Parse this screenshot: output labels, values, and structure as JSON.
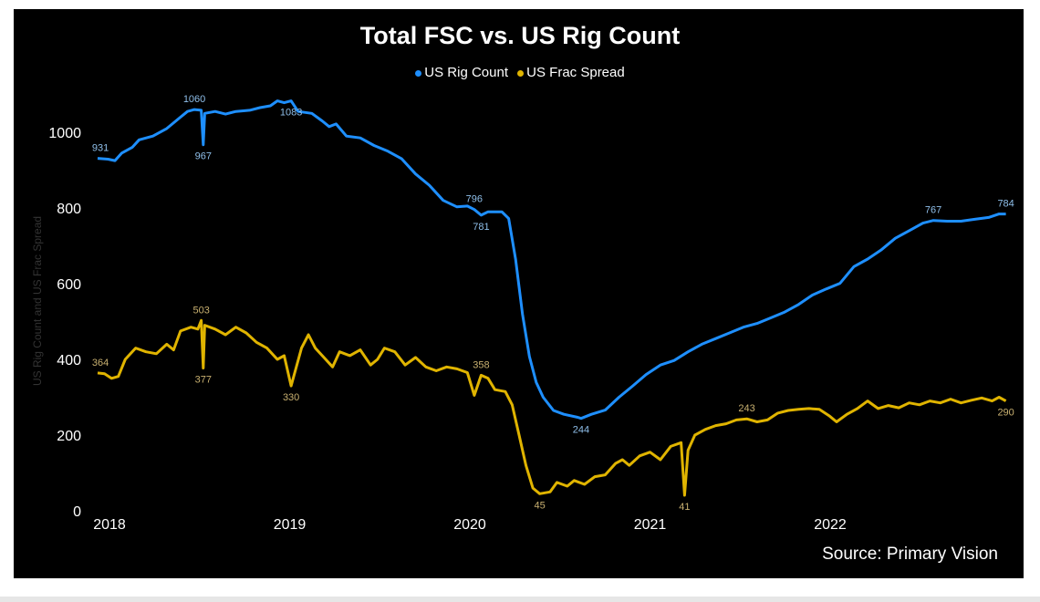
{
  "chart_data": {
    "type": "line",
    "title": "Total FSC vs. US Rig Count",
    "ylabel": "US Rig Count and US Frac Spread",
    "xlabel": "",
    "ylim": [
      0,
      1100
    ],
    "yticks": [
      "0",
      "200",
      "400",
      "600",
      "800",
      "1000"
    ],
    "xticks": [
      "2018",
      "2019",
      "2020",
      "2021",
      "2022"
    ],
    "grid": false,
    "legend_position": "top-center",
    "source": "Source: Primary Vision",
    "series": [
      {
        "name": "US Rig Count",
        "color": "#1e8fff",
        "label_color": "#8fbfea",
        "points": [
          [
            "2017-12-08",
            931
          ],
          [
            "2017-12-29",
            929
          ],
          [
            "2018-01-12",
            925
          ],
          [
            "2018-01-26",
            945
          ],
          [
            "2018-02-16",
            960
          ],
          [
            "2018-03-02",
            980
          ],
          [
            "2018-03-30",
            990
          ],
          [
            "2018-04-27",
            1010
          ],
          [
            "2018-05-25",
            1040
          ],
          [
            "2018-06-08",
            1055
          ],
          [
            "2018-06-22",
            1060
          ],
          [
            "2018-07-06",
            1058
          ],
          [
            "2018-07-10",
            967
          ],
          [
            "2018-07-13",
            1050
          ],
          [
            "2018-08-03",
            1055
          ],
          [
            "2018-08-24",
            1048
          ],
          [
            "2018-09-14",
            1055
          ],
          [
            "2018-10-12",
            1058
          ],
          [
            "2018-11-02",
            1065
          ],
          [
            "2018-11-23",
            1070
          ],
          [
            "2018-12-07",
            1083
          ],
          [
            "2018-12-21",
            1078
          ],
          [
            "2019-01-04",
            1083
          ],
          [
            "2019-01-18",
            1055
          ],
          [
            "2019-02-15",
            1050
          ],
          [
            "2019-03-08",
            1030
          ],
          [
            "2019-03-22",
            1015
          ],
          [
            "2019-04-05",
            1022
          ],
          [
            "2019-04-26",
            990
          ],
          [
            "2019-05-24",
            985
          ],
          [
            "2019-06-21",
            965
          ],
          [
            "2019-07-19",
            950
          ],
          [
            "2019-08-16",
            930
          ],
          [
            "2019-09-13",
            890
          ],
          [
            "2019-10-11",
            860
          ],
          [
            "2019-11-08",
            820
          ],
          [
            "2019-12-06",
            803
          ],
          [
            "2019-12-27",
            805
          ],
          [
            "2020-01-10",
            796
          ],
          [
            "2020-01-24",
            781
          ],
          [
            "2020-02-07",
            790
          ],
          [
            "2020-03-06",
            790
          ],
          [
            "2020-03-20",
            772
          ],
          [
            "2020-04-03",
            664
          ],
          [
            "2020-04-17",
            520
          ],
          [
            "2020-05-01",
            408
          ],
          [
            "2020-05-15",
            339
          ],
          [
            "2020-05-29",
            300
          ],
          [
            "2020-06-19",
            265
          ],
          [
            "2020-07-10",
            255
          ],
          [
            "2020-08-07",
            247
          ],
          [
            "2020-08-14",
            244
          ],
          [
            "2020-09-04",
            255
          ],
          [
            "2020-10-02",
            266
          ],
          [
            "2020-10-30",
            300
          ],
          [
            "2020-11-27",
            330
          ],
          [
            "2020-12-24",
            360
          ],
          [
            "2021-01-22",
            385
          ],
          [
            "2021-02-19",
            397
          ],
          [
            "2021-03-19",
            420
          ],
          [
            "2021-04-16",
            440
          ],
          [
            "2021-05-14",
            455
          ],
          [
            "2021-06-11",
            470
          ],
          [
            "2021-07-09",
            485
          ],
          [
            "2021-08-06",
            495
          ],
          [
            "2021-09-03",
            510
          ],
          [
            "2021-10-01",
            525
          ],
          [
            "2021-10-29",
            545
          ],
          [
            "2021-11-26",
            570
          ],
          [
            "2021-12-24",
            586
          ],
          [
            "2022-01-21",
            601
          ],
          [
            "2022-02-18",
            645
          ],
          [
            "2022-03-18",
            665
          ],
          [
            "2022-04-15",
            690
          ],
          [
            "2022-05-13",
            720
          ],
          [
            "2022-06-10",
            740
          ],
          [
            "2022-07-08",
            760
          ],
          [
            "2022-07-29",
            767
          ],
          [
            "2022-08-26",
            765
          ],
          [
            "2022-09-23",
            765
          ],
          [
            "2022-10-21",
            770
          ],
          [
            "2022-11-18",
            775
          ],
          [
            "2022-12-09",
            784
          ],
          [
            "2022-12-23",
            784
          ]
        ]
      },
      {
        "name": "US Frac Spread",
        "color": "#e0b400",
        "label_color": "#c8b070",
        "points": [
          [
            "2017-12-08",
            364
          ],
          [
            "2017-12-22",
            362
          ],
          [
            "2018-01-05",
            350
          ],
          [
            "2018-01-19",
            355
          ],
          [
            "2018-02-02",
            400
          ],
          [
            "2018-02-23",
            430
          ],
          [
            "2018-03-16",
            420
          ],
          [
            "2018-04-06",
            415
          ],
          [
            "2018-04-27",
            440
          ],
          [
            "2018-05-11",
            425
          ],
          [
            "2018-05-25",
            475
          ],
          [
            "2018-06-15",
            485
          ],
          [
            "2018-06-29",
            480
          ],
          [
            "2018-07-06",
            503
          ],
          [
            "2018-07-10",
            377
          ],
          [
            "2018-07-13",
            490
          ],
          [
            "2018-08-03",
            480
          ],
          [
            "2018-08-24",
            465
          ],
          [
            "2018-09-14",
            485
          ],
          [
            "2018-10-05",
            470
          ],
          [
            "2018-10-26",
            445
          ],
          [
            "2018-11-16",
            430
          ],
          [
            "2018-12-07",
            400
          ],
          [
            "2018-12-21",
            410
          ],
          [
            "2019-01-04",
            330
          ],
          [
            "2019-01-25",
            430
          ],
          [
            "2019-02-08",
            465
          ],
          [
            "2019-02-22",
            430
          ],
          [
            "2019-03-15",
            400
          ],
          [
            "2019-03-29",
            380
          ],
          [
            "2019-04-12",
            420
          ],
          [
            "2019-05-03",
            410
          ],
          [
            "2019-05-24",
            425
          ],
          [
            "2019-06-14",
            385
          ],
          [
            "2019-06-28",
            400
          ],
          [
            "2019-07-12",
            430
          ],
          [
            "2019-08-02",
            420
          ],
          [
            "2019-08-23",
            385
          ],
          [
            "2019-09-13",
            405
          ],
          [
            "2019-10-04",
            380
          ],
          [
            "2019-10-25",
            370
          ],
          [
            "2019-11-15",
            380
          ],
          [
            "2019-12-06",
            375
          ],
          [
            "2019-12-27",
            365
          ],
          [
            "2020-01-10",
            305
          ],
          [
            "2020-01-24",
            358
          ],
          [
            "2020-02-07",
            350
          ],
          [
            "2020-02-21",
            320
          ],
          [
            "2020-03-13",
            315
          ],
          [
            "2020-03-27",
            280
          ],
          [
            "2020-04-10",
            200
          ],
          [
            "2020-04-24",
            120
          ],
          [
            "2020-05-08",
            60
          ],
          [
            "2020-05-22",
            45
          ],
          [
            "2020-06-12",
            50
          ],
          [
            "2020-06-26",
            75
          ],
          [
            "2020-07-17",
            65
          ],
          [
            "2020-07-31",
            80
          ],
          [
            "2020-08-21",
            70
          ],
          [
            "2020-09-11",
            90
          ],
          [
            "2020-10-02",
            95
          ],
          [
            "2020-10-23",
            125
          ],
          [
            "2020-11-06",
            135
          ],
          [
            "2020-11-20",
            120
          ],
          [
            "2020-12-11",
            145
          ],
          [
            "2021-01-01",
            155
          ],
          [
            "2021-01-22",
            135
          ],
          [
            "2021-02-12",
            170
          ],
          [
            "2021-03-05",
            180
          ],
          [
            "2021-03-12",
            41
          ],
          [
            "2021-03-19",
            160
          ],
          [
            "2021-04-02",
            200
          ],
          [
            "2021-04-23",
            215
          ],
          [
            "2021-05-14",
            225
          ],
          [
            "2021-06-04",
            230
          ],
          [
            "2021-06-25",
            240
          ],
          [
            "2021-07-16",
            243
          ],
          [
            "2021-08-06",
            235
          ],
          [
            "2021-08-27",
            240
          ],
          [
            "2021-09-17",
            258
          ],
          [
            "2021-10-08",
            265
          ],
          [
            "2021-10-29",
            268
          ],
          [
            "2021-11-19",
            270
          ],
          [
            "2021-12-10",
            268
          ],
          [
            "2021-12-31",
            250
          ],
          [
            "2022-01-14",
            235
          ],
          [
            "2022-02-04",
            255
          ],
          [
            "2022-02-25",
            270
          ],
          [
            "2022-03-18",
            290
          ],
          [
            "2022-04-08",
            270
          ],
          [
            "2022-04-29",
            278
          ],
          [
            "2022-05-20",
            272
          ],
          [
            "2022-06-10",
            285
          ],
          [
            "2022-07-01",
            280
          ],
          [
            "2022-07-22",
            290
          ],
          [
            "2022-08-12",
            285
          ],
          [
            "2022-09-02",
            295
          ],
          [
            "2022-09-23",
            285
          ],
          [
            "2022-10-14",
            292
          ],
          [
            "2022-11-04",
            298
          ],
          [
            "2022-11-25",
            290
          ],
          [
            "2022-12-09",
            300
          ],
          [
            "2022-12-23",
            290
          ]
        ]
      }
    ],
    "data_labels": [
      {
        "series": 0,
        "date": "2017-12-08",
        "text": "931",
        "pos": "above"
      },
      {
        "series": 0,
        "date": "2018-06-22",
        "text": "1060",
        "pos": "above"
      },
      {
        "series": 0,
        "date": "2018-07-10",
        "text": "967",
        "pos": "below"
      },
      {
        "series": 0,
        "date": "2019-01-04",
        "text": "1083",
        "pos": "below"
      },
      {
        "series": 0,
        "date": "2020-01-10",
        "text": "796",
        "pos": "above"
      },
      {
        "series": 0,
        "date": "2020-01-24",
        "text": "781",
        "pos": "below"
      },
      {
        "series": 0,
        "date": "2020-08-14",
        "text": "244",
        "pos": "below"
      },
      {
        "series": 0,
        "date": "2022-07-29",
        "text": "767",
        "pos": "above"
      },
      {
        "series": 0,
        "date": "2022-12-23",
        "text": "784",
        "pos": "above"
      },
      {
        "series": 1,
        "date": "2017-12-08",
        "text": "364",
        "pos": "above"
      },
      {
        "series": 1,
        "date": "2018-07-06",
        "text": "503",
        "pos": "above"
      },
      {
        "series": 1,
        "date": "2018-07-10",
        "text": "377",
        "pos": "below"
      },
      {
        "series": 1,
        "date": "2019-01-04",
        "text": "330",
        "pos": "below"
      },
      {
        "series": 1,
        "date": "2020-01-24",
        "text": "358",
        "pos": "above"
      },
      {
        "series": 1,
        "date": "2020-05-22",
        "text": "45",
        "pos": "below"
      },
      {
        "series": 1,
        "date": "2021-03-12",
        "text": "41",
        "pos": "below"
      },
      {
        "series": 1,
        "date": "2021-07-16",
        "text": "243",
        "pos": "above"
      },
      {
        "series": 1,
        "date": "2022-12-23",
        "text": "290",
        "pos": "below"
      }
    ]
  }
}
